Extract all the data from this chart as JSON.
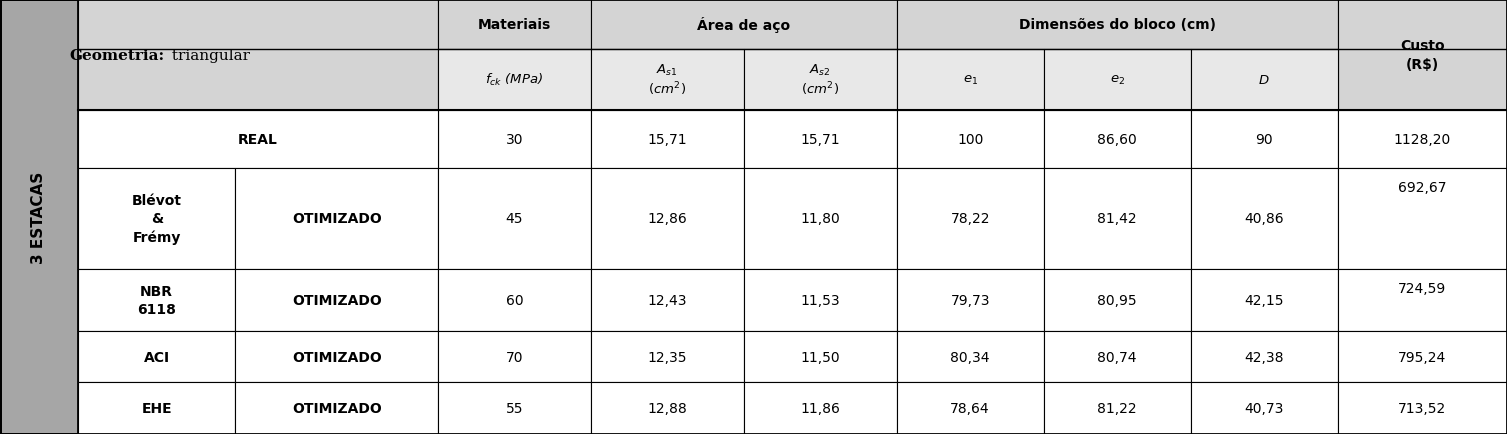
{
  "left_label": "3 ESTACAS",
  "geometry_bold": "Geometria:",
  "geometry_normal": " triangular",
  "header1": [
    "Materiais",
    "Área de aço",
    "Dimensões do bloco (cm)"
  ],
  "header2": [
    "fck_MPa",
    "As1_cm2",
    "As2_cm2",
    "e1",
    "e2",
    "D"
  ],
  "custo_header": "Custo\n(R$)",
  "rows": [
    {
      "norm": "",
      "type": "REAL",
      "fck": "30",
      "as1": "15,71",
      "as2": "15,71",
      "e1": "100",
      "e2": "86,60",
      "D": "90",
      "custo": "1128,20",
      "custo_valign": "center"
    },
    {
      "norm": "Blévot\n&\nFrémy",
      "type": "OTIMIZADO",
      "fck": "45",
      "as1": "12,86",
      "as2": "11,80",
      "e1": "78,22",
      "e2": "81,42",
      "D": "40,86",
      "custo": "692,67",
      "custo_valign": "top"
    },
    {
      "norm": "NBR\n6118",
      "type": "OTIMIZADO",
      "fck": "60",
      "as1": "12,43",
      "as2": "11,53",
      "e1": "79,73",
      "e2": "80,95",
      "D": "42,15",
      "custo": "724,59",
      "custo_valign": "top"
    },
    {
      "norm": "ACI",
      "type": "OTIMIZADO",
      "fck": "70",
      "as1": "12,35",
      "as2": "11,50",
      "e1": "80,34",
      "e2": "80,74",
      "D": "42,38",
      "custo": "795,24",
      "custo_valign": "center"
    },
    {
      "norm": "EHE",
      "type": "OTIMIZADO",
      "fck": "55",
      "as1": "12,88",
      "as2": "11,86",
      "e1": "78,64",
      "e2": "81,22",
      "D": "40,73",
      "custo": "713,52",
      "custo_valign": "center"
    }
  ],
  "bg_sidebar": "#a6a6a6",
  "bg_header": "#d4d4d4",
  "bg_subheader": "#e8e8e8",
  "bg_white": "#ffffff",
  "bg_light": "#f0f0f0",
  "border_color": "#000000",
  "text_color": "#000000",
  "fs_header": 10,
  "fs_subheader": 9.5,
  "fs_body": 10,
  "fs_sidebar": 11,
  "lw_outer": 2.0,
  "lw_inner": 0.8
}
